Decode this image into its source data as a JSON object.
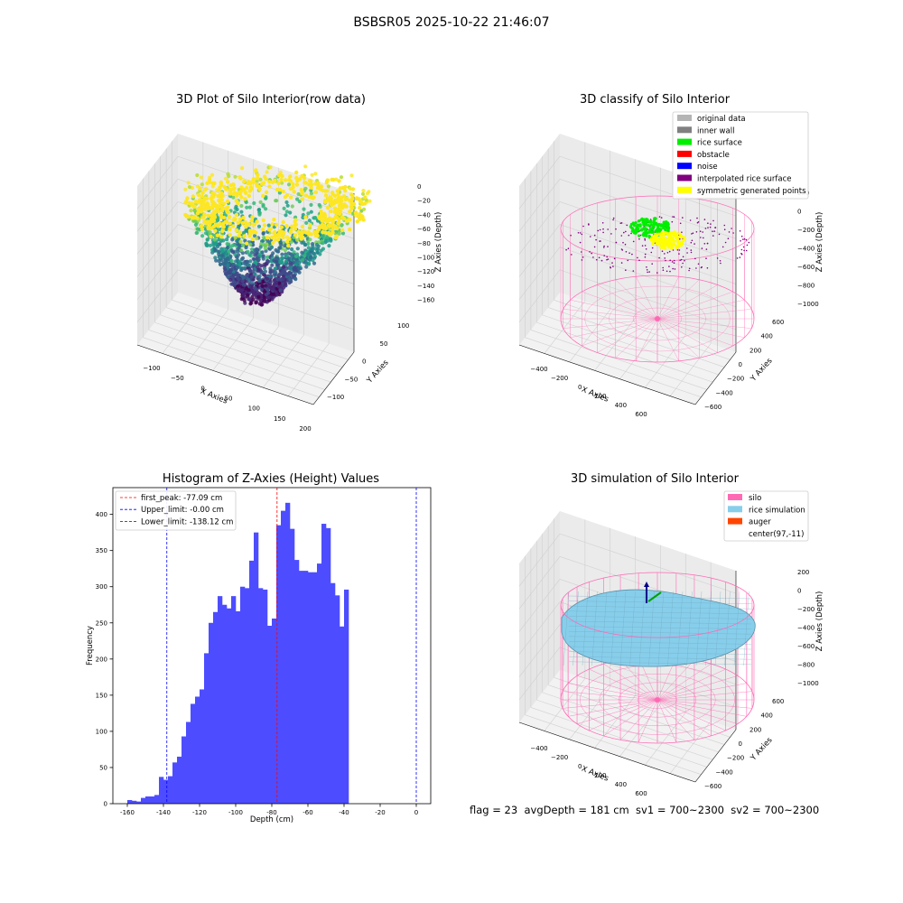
{
  "suptitle": "BSBSR05 2025-10-22 21:46:07",
  "footer": "flag = 23  avgDepth = 181 cm  sv1 = 700~2300  sv2 = 700~2300",
  "colors": {
    "silo": "#ff69b4",
    "rice_simulation": "#87ceeb",
    "auger": "#ff4500",
    "rice_surface": "#00ee00",
    "histogram_bar": "#4d4dff",
    "first_peak_line": "#ff0000",
    "limit_lines": "#0000ff"
  },
  "chart_data": [
    {
      "type": "scatter",
      "projection": "3d",
      "title": "3D Plot of Silo Interior(row data)",
      "xlabel": "X Axies",
      "ylabel": "Y Axies",
      "zlabel": "Z Axies (Depth)",
      "x_ticks": [
        "−100",
        "−50",
        "0",
        "50",
        "100",
        "150",
        "200"
      ],
      "y_ticks": [
        "−100",
        "−50",
        "0",
        "50",
        "100"
      ],
      "z_ticks": [
        "0",
        "−20",
        "−40",
        "−60",
        "−80",
        "−100",
        "−120",
        "−140",
        "−160"
      ],
      "xlim": [
        -140,
        210
      ],
      "ylim": [
        -120,
        120
      ],
      "zlim": [
        -165,
        5
      ],
      "colormap": "viridis",
      "grid": true
    },
    {
      "type": "scatter",
      "projection": "3d",
      "title": "3D classify of Silo Interior",
      "xlabel": "X Axies",
      "ylabel": "Y Axies",
      "zlabel": "Z Axies (Depth)",
      "x_ticks": [
        "−400",
        "−200",
        "0",
        "200",
        "400",
        "600"
      ],
      "y_ticks": [
        "−600",
        "−400",
        "−200",
        "0",
        "200",
        "400",
        "600"
      ],
      "z_ticks": [
        "200",
        "0",
        "−200",
        "−400",
        "−600",
        "−800",
        "−1000"
      ],
      "legend": {
        "position": "upper right",
        "entries": [
          {
            "label": "original data",
            "color": "#b4b4b4"
          },
          {
            "label": "inner wall",
            "color": "#808080"
          },
          {
            "label": "rice surface",
            "color": "#00ee00"
          },
          {
            "label": "obstacle",
            "color": "#ff0000"
          },
          {
            "label": "noise",
            "color": "#0000ff"
          },
          {
            "label": "interpolated rice surface",
            "color": "#800080"
          },
          {
            "label": "symmetric generated points",
            "color": "#ffff00"
          }
        ]
      },
      "grid": true
    },
    {
      "type": "bar",
      "title": "Histogram of Z-Axies (Height) Values",
      "xlabel": "Depth (cm)",
      "ylabel": "Frequency",
      "xlim": [
        -168,
        8
      ],
      "ylim": [
        0,
        437
      ],
      "x_ticks": [
        -160,
        -140,
        -120,
        -100,
        -80,
        -60,
        -40,
        -20,
        0
      ],
      "y_ticks": [
        0,
        50,
        100,
        150,
        200,
        250,
        300,
        350,
        400
      ],
      "bin_start": -160,
      "bin_width": 2.5,
      "values": [
        5,
        4,
        3,
        8,
        10,
        10,
        12,
        37,
        33,
        38,
        57,
        65,
        93,
        113,
        138,
        148,
        158,
        208,
        250,
        265,
        287,
        275,
        270,
        287,
        266,
        300,
        298,
        336,
        375,
        298,
        296,
        246,
        256,
        385,
        405,
        416,
        380,
        337,
        322,
        322,
        320,
        320,
        332,
        387,
        381,
        305,
        288,
        245,
        296
      ],
      "lines": [
        {
          "label": "first_peak: -77.09 cm",
          "x": -77.09,
          "color": "#ff0000"
        },
        {
          "label": "Upper_limit: -0.00 cm",
          "x": 0,
          "color": "#0000ff"
        },
        {
          "label": "Lower_limit: -138.12 cm",
          "x": -138.12,
          "color": "#0000ff"
        }
      ],
      "legend_position": "upper left",
      "grid": false
    },
    {
      "type": "surface",
      "projection": "3d",
      "title": "3D simulation of Silo Interior",
      "xlabel": "X Axies",
      "ylabel": "Y Axies",
      "zlabel": "Z Axies (Depth)",
      "x_ticks": [
        "−400",
        "−200",
        "0",
        "200",
        "400",
        "600"
      ],
      "y_ticks": [
        "−600",
        "−400",
        "−200",
        "0",
        "200",
        "400",
        "600"
      ],
      "z_ticks": [
        "200",
        "0",
        "−200",
        "−400",
        "−600",
        "−800",
        "−1000"
      ],
      "legend": {
        "position": "upper right",
        "entries": [
          {
            "label": "silo",
            "color": "#ff69b4"
          },
          {
            "label": "rice simulation",
            "color": "#87ceeb"
          },
          {
            "label": "auger",
            "color": "#ff4500"
          },
          {
            "label": "center(97,-11)",
            "color": ""
          }
        ]
      },
      "grid": true
    }
  ]
}
